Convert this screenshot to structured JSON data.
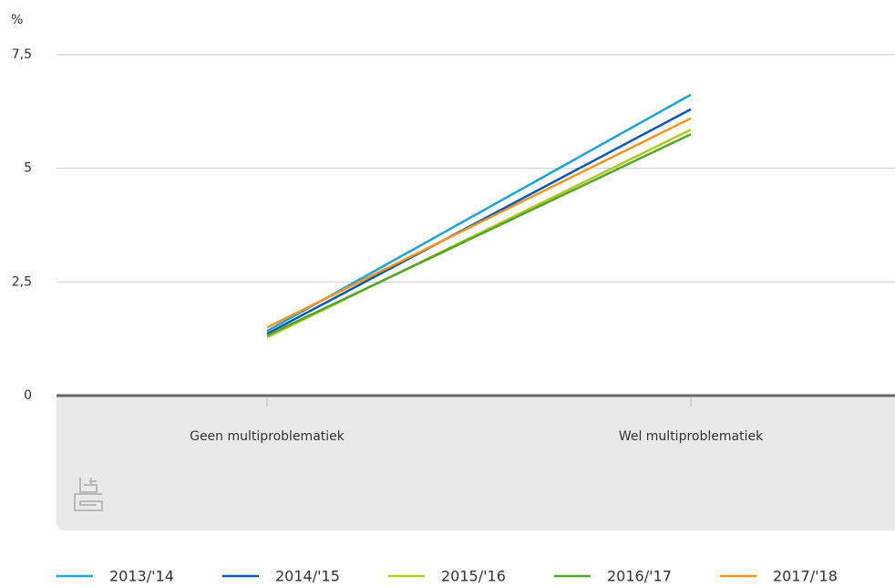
{
  "chart_data": {
    "type": "line",
    "y_label": "%",
    "categories": [
      "Geen multiproblematiek",
      "Wel multiproblematiek"
    ],
    "series": [
      {
        "name": "2013/'14",
        "color": "#1aa5d2",
        "values": [
          1.42,
          6.62
        ]
      },
      {
        "name": "2014/'15",
        "color": "#0a58b0",
        "values": [
          1.36,
          6.3
        ]
      },
      {
        "name": "2015/'16",
        "color": "#afcb1e",
        "values": [
          1.28,
          5.85
        ]
      },
      {
        "name": "2016/'17",
        "color": "#54a429",
        "values": [
          1.32,
          5.75
        ]
      },
      {
        "name": "2017/'18",
        "color": "#f0961e",
        "values": [
          1.5,
          6.1
        ]
      }
    ],
    "ylim": [
      0,
      7.5
    ],
    "yticks": [
      0,
      {
        "value": 2.5,
        "label": "2,5"
      },
      5,
      {
        "value": 7.5,
        "label": "7,5"
      }
    ],
    "grid": true
  }
}
